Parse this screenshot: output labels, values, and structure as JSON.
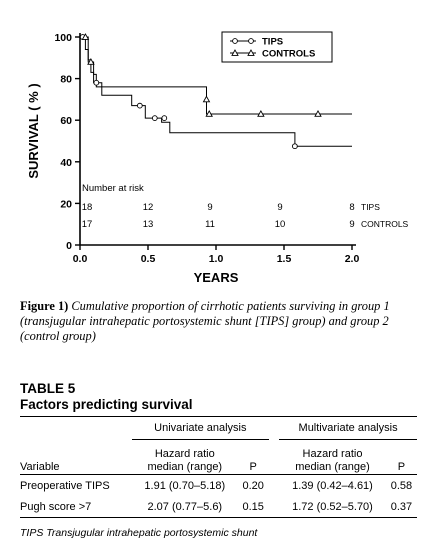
{
  "chart_data": {
    "type": "line",
    "step": true,
    "ylabel": "SURVIVAL ( % )",
    "xlabel": "YEARS",
    "xlim": [
      0,
      2.0
    ],
    "ylim": [
      0,
      100
    ],
    "xticks": [
      "0.0",
      "0.5",
      "1.0",
      "1.5",
      "2.0"
    ],
    "yticks": [
      "0",
      "20",
      "40",
      "60",
      "80",
      "100"
    ],
    "grid": false,
    "legend_position": "top-right",
    "series": [
      {
        "name": "TIPS",
        "marker": "circle",
        "points": [
          [
            0.0,
            100
          ],
          [
            0.04,
            100
          ],
          [
            0.04,
            94
          ],
          [
            0.06,
            94
          ],
          [
            0.06,
            89
          ],
          [
            0.08,
            89
          ],
          [
            0.08,
            83
          ],
          [
            0.1,
            83
          ],
          [
            0.1,
            78
          ],
          [
            0.16,
            78
          ],
          [
            0.16,
            72
          ],
          [
            0.38,
            72
          ],
          [
            0.38,
            67
          ],
          [
            0.48,
            67
          ],
          [
            0.48,
            61
          ],
          [
            0.6,
            61
          ],
          [
            0.6,
            59
          ],
          [
            0.66,
            59
          ],
          [
            0.66,
            54
          ],
          [
            1.58,
            54
          ],
          [
            1.58,
            47.5
          ],
          [
            2.0,
            47.5
          ]
        ],
        "markers": [
          [
            0.02,
            100
          ],
          [
            0.12,
            78
          ],
          [
            0.44,
            67
          ],
          [
            0.55,
            61
          ],
          [
            0.62,
            61
          ],
          [
            1.58,
            47.5
          ]
        ]
      },
      {
        "name": "CONTROLS",
        "marker": "triangle",
        "points": [
          [
            0.0,
            100
          ],
          [
            0.06,
            100
          ],
          [
            0.06,
            88
          ],
          [
            0.1,
            88
          ],
          [
            0.1,
            82
          ],
          [
            0.12,
            82
          ],
          [
            0.12,
            76
          ],
          [
            0.93,
            76
          ],
          [
            0.93,
            63
          ],
          [
            2.0,
            63
          ]
        ],
        "markers": [
          [
            0.04,
            100
          ],
          [
            0.08,
            88
          ],
          [
            0.93,
            70
          ],
          [
            0.95,
            63
          ],
          [
            1.33,
            63
          ],
          [
            1.75,
            63
          ]
        ]
      }
    ],
    "annotations": {
      "at_risk_title": "Number at risk",
      "at_risk": [
        {
          "label": "TIPS",
          "values": [
            "18",
            "12",
            "9",
            "9",
            "8"
          ]
        },
        {
          "label": "CONTROLS",
          "values": [
            "17",
            "13",
            "11",
            "10",
            "9"
          ]
        }
      ]
    }
  },
  "caption": {
    "label": "Figure 1)",
    "text": "Cumulative proportion of cirrhotic patients surviving in group 1 (transjugular intrahepatic portosystemic shunt [TIPS] group) and group 2 (control group)"
  },
  "table": {
    "label": "TABLE 5",
    "title": "Factors predicting survival",
    "group_headers": [
      "Univariate analysis",
      "Multivariate analysis"
    ],
    "col_variable": "Variable",
    "col_hr_1": "Hazard ratio",
    "col_hr_2": "median (range)",
    "col_p": "P",
    "rows": [
      {
        "variable": "Preoperative TIPS",
        "uni_hr": "1.91 (0.70–5.18)",
        "uni_p": "0.20",
        "multi_hr": "1.39 (0.42–4.61)",
        "multi_p": "0.58"
      },
      {
        "variable": "Pugh score >7",
        "uni_hr": "2.07 (0.77–5.6)",
        "uni_p": "0.15",
        "multi_hr": "1.72 (0.52–5.70)",
        "multi_p": "0.37"
      }
    ],
    "footnote": "TIPS Transjugular intrahepatic portosystemic shunt"
  }
}
